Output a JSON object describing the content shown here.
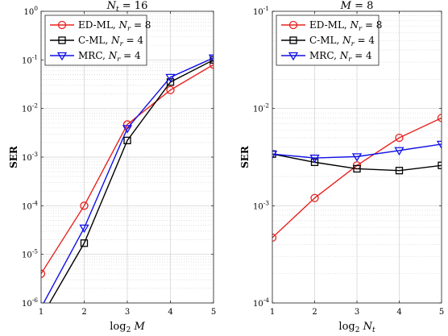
{
  "chart_data": [
    {
      "type": "line",
      "title": "N_t = 16",
      "title_parts": {
        "var": "N",
        "sub": "t",
        "rest": " = 16"
      },
      "xlabel": "log₂ M",
      "xlabel_parts": {
        "pre": "log",
        "sub": "2",
        "var": "M"
      },
      "ylabel": "SER",
      "yscale": "log",
      "xlim": [
        1,
        5
      ],
      "ylim": [
        1e-06,
        1
      ],
      "x_ticks": [
        "1",
        "2",
        "3",
        "4",
        "5"
      ],
      "y_ticks": [
        {
          "value": 1e-06,
          "base": "10",
          "exp": "-6"
        },
        {
          "value": 1e-05,
          "base": "10",
          "exp": "-5"
        },
        {
          "value": 0.0001,
          "base": "10",
          "exp": "-4"
        },
        {
          "value": 0.001,
          "base": "10",
          "exp": "-3"
        },
        {
          "value": 0.01,
          "base": "10",
          "exp": "-2"
        },
        {
          "value": 0.1,
          "base": "10",
          "exp": "-1"
        },
        {
          "value": 1,
          "base": "10",
          "exp": "0"
        }
      ],
      "grid": true,
      "legend_position": "top-left",
      "x": [
        1,
        2,
        3,
        4,
        5
      ],
      "series": [
        {
          "name": "ED-ML, N_r = 8",
          "label": "ED-ML, ",
          "var": "N",
          "sub": "r",
          "rest": " = 8",
          "color": "#e8221f",
          "marker": "circle",
          "values": [
            4e-06,
            0.0001,
            0.0047,
            0.024,
            0.08
          ]
        },
        {
          "name": "C-ML, N_r = 4",
          "label": "C-ML, ",
          "var": "N",
          "sub": "r",
          "rest": " = 4",
          "color": "#000000",
          "marker": "square",
          "values": [
            5e-07,
            1.7e-05,
            0.0022,
            0.035,
            0.1
          ]
        },
        {
          "name": "MRC, N_r = 4",
          "label": "MRC, ",
          "var": "N",
          "sub": "r",
          "rest": " = 4",
          "color": "#1010e6",
          "marker": "triangle-down",
          "values": [
            8e-07,
            3.5e-05,
            0.0039,
            0.044,
            0.11
          ]
        }
      ]
    },
    {
      "type": "line",
      "title": "M = 8",
      "title_parts": {
        "var": "M",
        "sub": "",
        "rest": " = 8"
      },
      "xlabel": "log₂ N_t",
      "xlabel_parts": {
        "pre": "log",
        "sub": "2",
        "var": "N",
        "varsub": "t"
      },
      "ylabel": "SER",
      "yscale": "log",
      "xlim": [
        1,
        5
      ],
      "ylim": [
        0.0001,
        0.1
      ],
      "x_ticks": [
        "1",
        "2",
        "3",
        "4",
        "5"
      ],
      "y_ticks": [
        {
          "value": 0.0001,
          "base": "10",
          "exp": "-4"
        },
        {
          "value": 0.001,
          "base": "10",
          "exp": "-3"
        },
        {
          "value": 0.01,
          "base": "10",
          "exp": "-2"
        },
        {
          "value": 0.1,
          "base": "10",
          "exp": "-1"
        }
      ],
      "grid": true,
      "legend_position": "top-left",
      "x": [
        1,
        2,
        3,
        4,
        5
      ],
      "series": [
        {
          "name": "ED-ML, N_r = 8",
          "label": "ED-ML, ",
          "var": "N",
          "sub": "r",
          "rest": " = 8",
          "color": "#e8221f",
          "marker": "circle",
          "values": [
            0.00047,
            0.0012,
            0.0026,
            0.005,
            0.008
          ]
        },
        {
          "name": "C-ML, N_r = 4",
          "label": "C-ML, ",
          "var": "N",
          "sub": "r",
          "rest": " = 4",
          "color": "#000000",
          "marker": "square",
          "values": [
            0.0034,
            0.0028,
            0.0024,
            0.0023,
            0.0026
          ]
        },
        {
          "name": "MRC, N_r = 4",
          "label": "MRC, ",
          "var": "N",
          "sub": "r",
          "rest": " = 4",
          "color": "#1010e6",
          "marker": "triangle-down",
          "values": [
            0.0034,
            0.0031,
            0.0032,
            0.0037,
            0.0043
          ]
        }
      ]
    }
  ]
}
